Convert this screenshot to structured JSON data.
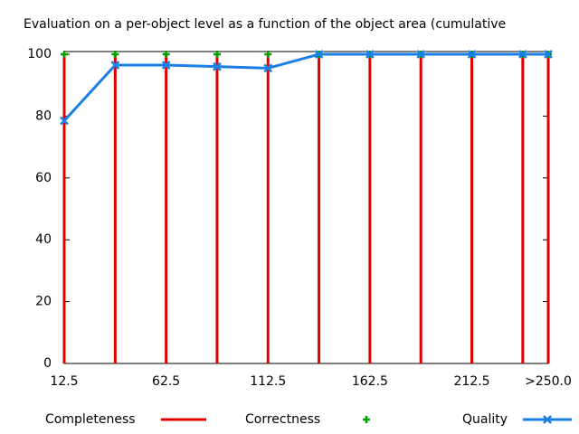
{
  "chart_data": {
    "type": "impulse-line",
    "title": "Evaluation on a per-object level as a function of the object area (cumulative",
    "x": [
      12.5,
      37.5,
      62.5,
      87.5,
      112.5,
      137.5,
      162.5,
      187.5,
      212.5,
      237.5,
      250
    ],
    "series": [
      {
        "name": "Completeness",
        "color": "#e00000",
        "style": "impulses",
        "values": [
          100,
          100,
          100,
          100,
          100,
          100,
          100,
          100,
          100,
          100,
          100
        ]
      },
      {
        "name": "Correctness",
        "color": "#00a000",
        "style": "points",
        "values": [
          100,
          100,
          100,
          100,
          100,
          100,
          100,
          100,
          100,
          100,
          100
        ]
      },
      {
        "name": "Quality",
        "color": "#1a80e6",
        "style": "linespoints",
        "values": [
          78.5,
          96.5,
          96.5,
          96,
          95.5,
          100,
          100,
          100,
          100,
          100,
          100
        ]
      }
    ],
    "xlim": [
      12.5,
      250
    ],
    "xticks": [
      12.5,
      62.5,
      112.5,
      162.5,
      212.5,
      {
        "value": 250,
        "label": ">250.0"
      }
    ],
    "ylim": [
      0,
      100
    ],
    "yticks": [
      0,
      20,
      40,
      60,
      80,
      100
    ]
  }
}
